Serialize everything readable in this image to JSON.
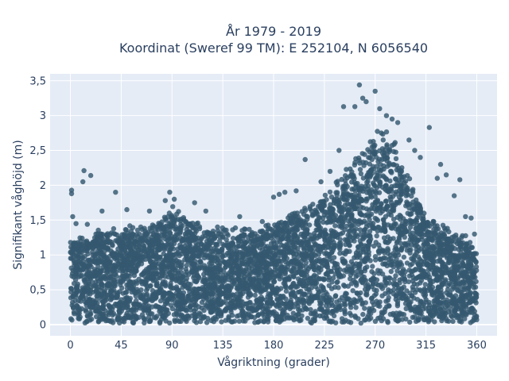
{
  "chart_data": {
    "type": "scatter",
    "title_lines": [
      "År 1979 - 2019",
      "Koordinat (Sweref 99 TM): E 252104, N 6056540"
    ],
    "xlabel": "Vågriktning (grader)",
    "ylabel": "Signifikant våghöjd (m)",
    "xlim": [
      -18,
      378
    ],
    "ylim": [
      -0.16,
      3.6
    ],
    "x_ticks": [
      0,
      45,
      90,
      135,
      180,
      225,
      270,
      315,
      360
    ],
    "x_tick_labels": [
      "0",
      "45",
      "90",
      "135",
      "180",
      "225",
      "270",
      "315",
      "360"
    ],
    "y_ticks": [
      0,
      0.5,
      1,
      1.5,
      2,
      2.5,
      3,
      3.5
    ],
    "y_tick_labels": [
      "0",
      "0,5",
      "1",
      "1,5",
      "2",
      "2,5",
      "3",
      "3,5"
    ],
    "grid": true,
    "legend": "none",
    "marker_color": "#34586f",
    "plot_background": "#e5ecf6",
    "approx_upper_envelope": {
      "direction_deg": [
        0,
        10,
        20,
        30,
        45,
        60,
        75,
        85,
        90,
        100,
        110,
        120,
        135,
        150,
        165,
        180,
        195,
        210,
        225,
        240,
        255,
        265,
        270,
        275,
        285,
        295,
        305,
        315,
        325,
        335,
        345,
        355,
        360
      ],
      "max_height_m": [
        1.2,
        1.25,
        1.3,
        1.35,
        1.35,
        1.4,
        1.45,
        1.6,
        1.65,
        1.55,
        1.45,
        1.4,
        1.35,
        1.35,
        1.35,
        1.45,
        1.55,
        1.65,
        1.85,
        2.1,
        2.4,
        2.6,
        2.7,
        2.75,
        2.6,
        2.3,
        1.9,
        1.6,
        1.45,
        1.35,
        1.3,
        1.2,
        1.1
      ]
    },
    "outliers": [
      {
        "x": 1,
        "y": 1.93
      },
      {
        "x": 1,
        "y": 1.88
      },
      {
        "x": 2,
        "y": 1.55
      },
      {
        "x": 5,
        "y": 1.45
      },
      {
        "x": 12,
        "y": 2.21
      },
      {
        "x": 11,
        "y": 2.05
      },
      {
        "x": 18,
        "y": 2.14
      },
      {
        "x": 15,
        "y": 1.44
      },
      {
        "x": 28,
        "y": 1.63
      },
      {
        "x": 40,
        "y": 1.9
      },
      {
        "x": 50,
        "y": 1.65
      },
      {
        "x": 70,
        "y": 1.63
      },
      {
        "x": 84,
        "y": 1.78
      },
      {
        "x": 88,
        "y": 1.9
      },
      {
        "x": 92,
        "y": 1.8
      },
      {
        "x": 110,
        "y": 1.75
      },
      {
        "x": 120,
        "y": 1.63
      },
      {
        "x": 150,
        "y": 1.55
      },
      {
        "x": 170,
        "y": 1.48
      },
      {
        "x": 180,
        "y": 1.83
      },
      {
        "x": 185,
        "y": 1.87
      },
      {
        "x": 190,
        "y": 1.9
      },
      {
        "x": 200,
        "y": 1.92
      },
      {
        "x": 208,
        "y": 2.37
      },
      {
        "x": 222,
        "y": 2.05
      },
      {
        "x": 230,
        "y": 2.2
      },
      {
        "x": 238,
        "y": 2.5
      },
      {
        "x": 242,
        "y": 3.13
      },
      {
        "x": 252,
        "y": 3.13
      },
      {
        "x": 256,
        "y": 3.44
      },
      {
        "x": 259,
        "y": 3.25
      },
      {
        "x": 262,
        "y": 3.2
      },
      {
        "x": 270,
        "y": 3.35
      },
      {
        "x": 274,
        "y": 3.1
      },
      {
        "x": 280,
        "y": 3.0
      },
      {
        "x": 285,
        "y": 2.95
      },
      {
        "x": 290,
        "y": 2.9
      },
      {
        "x": 300,
        "y": 2.65
      },
      {
        "x": 305,
        "y": 2.5
      },
      {
        "x": 310,
        "y": 2.4
      },
      {
        "x": 318,
        "y": 2.83
      },
      {
        "x": 325,
        "y": 2.1
      },
      {
        "x": 328,
        "y": 2.3
      },
      {
        "x": 333,
        "y": 2.15
      },
      {
        "x": 340,
        "y": 1.85
      },
      {
        "x": 345,
        "y": 2.08
      },
      {
        "x": 350,
        "y": 1.55
      },
      {
        "x": 355,
        "y": 1.53
      },
      {
        "x": 358,
        "y": 1.3
      }
    ],
    "min_height_m": 0.02
  }
}
